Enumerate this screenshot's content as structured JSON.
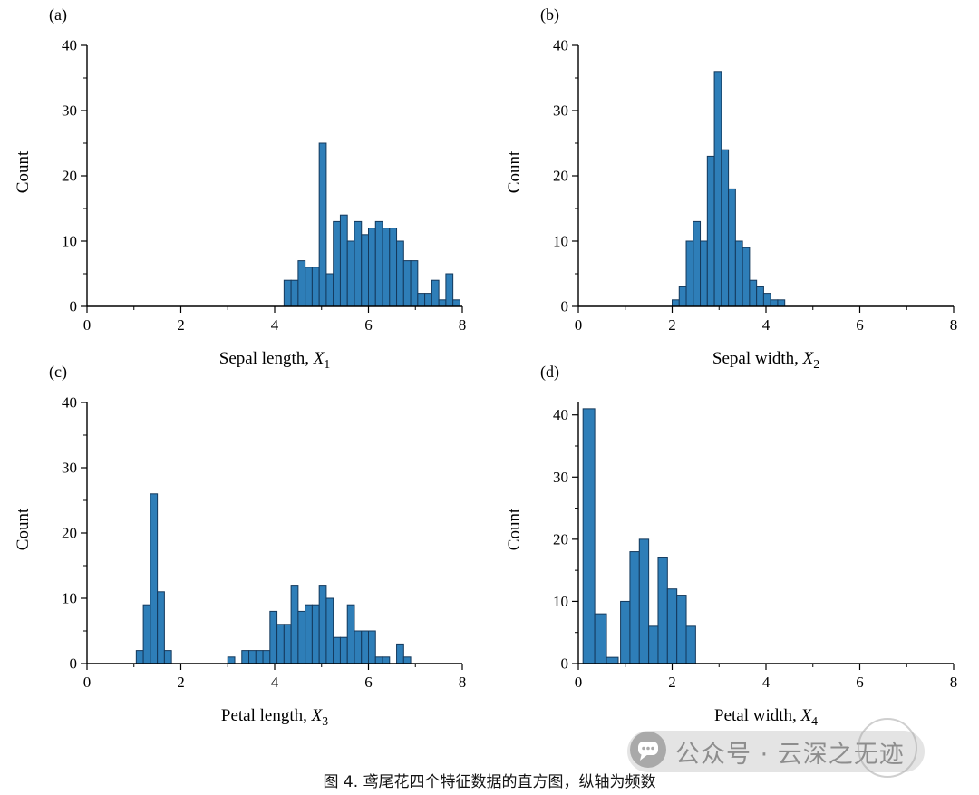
{
  "style": {
    "bar_fill": "#2E7EB8",
    "bar_edge": "#14395C",
    "axis_color": "#000000",
    "watermark_gray": "#8d8d8d"
  },
  "figure_caption": "图 4. 鸢尾花四个特征数据的直方图，纵轴为频数",
  "watermark": {
    "text": "公众号 · 云深之无迹",
    "icon": "wechat-chat-bubble-icon"
  },
  "chart_data": [
    {
      "type": "bar",
      "panel_label": "(a)",
      "xlabel": "Sepal length, X1",
      "xlabel_text": "Sepal length, ",
      "xvar": "X",
      "xvar_sub": "1",
      "ylabel": "Count",
      "xlim": [
        0,
        8
      ],
      "ylim": [
        0,
        40
      ],
      "ymax_render": 40,
      "xticks": [
        0,
        2,
        4,
        6,
        8
      ],
      "xminorticks": [
        1,
        3,
        5,
        7
      ],
      "yticks": [
        0,
        10,
        20,
        30,
        40
      ],
      "yminorticks": [
        5,
        15,
        25,
        35
      ],
      "grid": false,
      "legend": "none",
      "bin_width": 0.15,
      "bins": [
        {
          "x": 4.2,
          "count": 4
        },
        {
          "x": 4.35,
          "count": 4
        },
        {
          "x": 4.5,
          "count": 7
        },
        {
          "x": 4.65,
          "count": 6
        },
        {
          "x": 4.8,
          "count": 6
        },
        {
          "x": 4.95,
          "count": 25
        },
        {
          "x": 5.1,
          "count": 5
        },
        {
          "x": 5.25,
          "count": 13
        },
        {
          "x": 5.4,
          "count": 14
        },
        {
          "x": 5.55,
          "count": 10
        },
        {
          "x": 5.7,
          "count": 13
        },
        {
          "x": 5.85,
          "count": 11
        },
        {
          "x": 6.0,
          "count": 12
        },
        {
          "x": 6.15,
          "count": 13
        },
        {
          "x": 6.3,
          "count": 12
        },
        {
          "x": 6.45,
          "count": 12
        },
        {
          "x": 6.6,
          "count": 10
        },
        {
          "x": 6.75,
          "count": 7
        },
        {
          "x": 6.9,
          "count": 7
        },
        {
          "x": 7.05,
          "count": 2
        },
        {
          "x": 7.2,
          "count": 2
        },
        {
          "x": 7.35,
          "count": 4
        },
        {
          "x": 7.5,
          "count": 1
        },
        {
          "x": 7.65,
          "count": 5
        },
        {
          "x": 7.8,
          "count": 1
        }
      ]
    },
    {
      "type": "bar",
      "panel_label": "(b)",
      "xlabel": "Sepal width, X2",
      "xlabel_text": "Sepal width, ",
      "xvar": "X",
      "xvar_sub": "2",
      "ylabel": "Count",
      "xlim": [
        0,
        8
      ],
      "ylim": [
        0,
        40
      ],
      "ymax_render": 40,
      "xticks": [
        0,
        2,
        4,
        6,
        8
      ],
      "xminorticks": [
        1,
        3,
        5,
        7
      ],
      "yticks": [
        0,
        10,
        20,
        30,
        40
      ],
      "yminorticks": [
        5,
        15,
        25,
        35
      ],
      "grid": false,
      "legend": "none",
      "bin_width": 0.15,
      "bins": [
        {
          "x": 2.0,
          "count": 1
        },
        {
          "x": 2.15,
          "count": 3
        },
        {
          "x": 2.3,
          "count": 10
        },
        {
          "x": 2.45,
          "count": 13
        },
        {
          "x": 2.6,
          "count": 10
        },
        {
          "x": 2.75,
          "count": 23
        },
        {
          "x": 2.9,
          "count": 36
        },
        {
          "x": 3.05,
          "count": 24
        },
        {
          "x": 3.2,
          "count": 18
        },
        {
          "x": 3.35,
          "count": 10
        },
        {
          "x": 3.5,
          "count": 9
        },
        {
          "x": 3.65,
          "count": 4
        },
        {
          "x": 3.8,
          "count": 3
        },
        {
          "x": 3.95,
          "count": 2
        },
        {
          "x": 4.1,
          "count": 1
        },
        {
          "x": 4.25,
          "count": 1
        }
      ]
    },
    {
      "type": "bar",
      "panel_label": "(c)",
      "xlabel": "Petal length, X3",
      "xlabel_text": "Petal length, ",
      "xvar": "X",
      "xvar_sub": "3",
      "ylabel": "Count",
      "xlim": [
        0,
        8
      ],
      "ylim": [
        0,
        40
      ],
      "ymax_render": 40,
      "xticks": [
        0,
        2,
        4,
        6,
        8
      ],
      "xminorticks": [
        1,
        3,
        5,
        7
      ],
      "yticks": [
        0,
        10,
        20,
        30,
        40
      ],
      "yminorticks": [
        5,
        15,
        25,
        35
      ],
      "grid": false,
      "legend": "none",
      "bin_width": 0.15,
      "bins": [
        {
          "x": 1.05,
          "count": 2
        },
        {
          "x": 1.2,
          "count": 9
        },
        {
          "x": 1.35,
          "count": 26
        },
        {
          "x": 1.5,
          "count": 11
        },
        {
          "x": 1.65,
          "count": 2
        },
        {
          "x": 3.0,
          "count": 1
        },
        {
          "x": 3.3,
          "count": 2
        },
        {
          "x": 3.45,
          "count": 2
        },
        {
          "x": 3.6,
          "count": 2
        },
        {
          "x": 3.75,
          "count": 2
        },
        {
          "x": 3.9,
          "count": 8
        },
        {
          "x": 4.05,
          "count": 6
        },
        {
          "x": 4.2,
          "count": 6
        },
        {
          "x": 4.35,
          "count": 12
        },
        {
          "x": 4.5,
          "count": 8
        },
        {
          "x": 4.65,
          "count": 9
        },
        {
          "x": 4.8,
          "count": 9
        },
        {
          "x": 4.95,
          "count": 12
        },
        {
          "x": 5.1,
          "count": 10
        },
        {
          "x": 5.25,
          "count": 4
        },
        {
          "x": 5.4,
          "count": 4
        },
        {
          "x": 5.55,
          "count": 9
        },
        {
          "x": 5.7,
          "count": 5
        },
        {
          "x": 5.85,
          "count": 5
        },
        {
          "x": 6.0,
          "count": 5
        },
        {
          "x": 6.15,
          "count": 1
        },
        {
          "x": 6.3,
          "count": 1
        },
        {
          "x": 6.6,
          "count": 3
        },
        {
          "x": 6.75,
          "count": 1
        }
      ]
    },
    {
      "type": "bar",
      "panel_label": "(d)",
      "xlabel": "Petal width, X4",
      "xlabel_text": "Petal width, ",
      "xvar": "X",
      "xvar_sub": "4",
      "ylabel": "Count",
      "xlim": [
        0,
        8
      ],
      "ylim": [
        0,
        41
      ],
      "ymax_render": 42,
      "xticks": [
        0,
        2,
        4,
        6,
        8
      ],
      "xminorticks": [
        1,
        3,
        5,
        7
      ],
      "yticks": [
        0,
        10,
        20,
        30,
        40
      ],
      "yminorticks": [
        5,
        15,
        25,
        35
      ],
      "grid": false,
      "legend": "none",
      "bin_width": 0.2,
      "bins": [
        {
          "x": 0.1,
          "w": 0.25,
          "count": 41
        },
        {
          "x": 0.35,
          "w": 0.25,
          "count": 8
        },
        {
          "x": 0.6,
          "w": 0.25,
          "count": 1
        },
        {
          "x": 0.9,
          "count": 10
        },
        {
          "x": 1.1,
          "count": 18
        },
        {
          "x": 1.3,
          "count": 20
        },
        {
          "x": 1.5,
          "count": 6
        },
        {
          "x": 1.7,
          "count": 17
        },
        {
          "x": 1.9,
          "count": 12
        },
        {
          "x": 2.1,
          "count": 11
        },
        {
          "x": 2.3,
          "count": 6
        }
      ]
    }
  ]
}
